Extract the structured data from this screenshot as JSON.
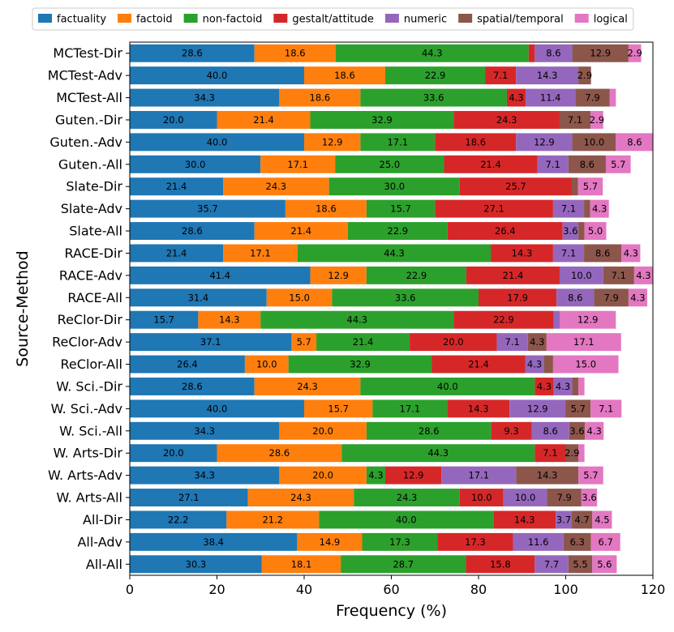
{
  "chart_data": {
    "type": "bar",
    "orientation": "horizontal",
    "stacked": true,
    "xlabel": "Frequency (%)",
    "ylabel": "Source-Method",
    "xlim": [
      0,
      120
    ],
    "xticks": [
      "0",
      "20",
      "40",
      "60",
      "80",
      "100",
      "120"
    ],
    "legend_position": "top",
    "categories": [
      "MCTest-Dir",
      "MCTest-Adv",
      "MCTest-All",
      "Guten.-Dir",
      "Guten.-Adv",
      "Guten.-All",
      "Slate-Dir",
      "Slate-Adv",
      "Slate-All",
      "RACE-Dir",
      "RACE-Adv",
      "RACE-All",
      "ReClor-Dir",
      "ReClor-Adv",
      "ReClor-All",
      "W. Sci.-Dir",
      "W. Sci.-Adv",
      "W. Sci.-All",
      "W. Arts-Dir",
      "W. Arts-Adv",
      "W. Arts-All",
      "All-Dir",
      "All-Adv",
      "All-All"
    ],
    "series": [
      {
        "name": "factuality",
        "color": "#1f77b4",
        "values": [
          28.6,
          40.0,
          34.3,
          20.0,
          40.0,
          30.0,
          21.4,
          35.7,
          28.6,
          21.4,
          41.4,
          31.4,
          15.7,
          37.1,
          26.4,
          28.6,
          40.0,
          34.3,
          20.0,
          34.3,
          27.1,
          22.2,
          38.4,
          30.3
        ]
      },
      {
        "name": "factoid",
        "color": "#ff7f0e",
        "values": [
          18.6,
          18.6,
          18.6,
          21.4,
          12.9,
          17.1,
          24.3,
          18.6,
          21.4,
          17.1,
          12.9,
          15.0,
          14.3,
          5.7,
          10.0,
          24.3,
          15.7,
          20.0,
          28.6,
          20.0,
          24.3,
          21.2,
          14.9,
          18.1
        ]
      },
      {
        "name": "non-factoid",
        "color": "#2ca02c",
        "values": [
          44.3,
          22.9,
          33.6,
          32.9,
          17.1,
          25.0,
          30.0,
          15.7,
          22.9,
          44.3,
          22.9,
          33.6,
          44.3,
          21.4,
          32.9,
          40.0,
          17.1,
          28.6,
          44.3,
          4.3,
          24.3,
          40.0,
          17.3,
          28.7
        ]
      },
      {
        "name": "gestalt/attitude",
        "color": "#d62728",
        "values": [
          1.4,
          7.1,
          4.3,
          24.3,
          18.6,
          21.4,
          25.7,
          27.1,
          26.4,
          14.3,
          21.4,
          17.9,
          22.9,
          20.0,
          21.4,
          4.3,
          14.3,
          9.3,
          7.1,
          12.9,
          10.0,
          14.3,
          17.3,
          15.8
        ]
      },
      {
        "name": "numeric",
        "color": "#9467bd",
        "values": [
          8.6,
          14.3,
          11.4,
          0.0,
          12.9,
          7.1,
          0.0,
          7.1,
          3.6,
          7.1,
          10.0,
          8.6,
          1.4,
          7.1,
          4.3,
          4.3,
          12.9,
          8.6,
          0.0,
          17.1,
          10.0,
          3.7,
          11.6,
          7.7
        ]
      },
      {
        "name": "spatial/temporal",
        "color": "#8c564b",
        "values": [
          12.9,
          2.9,
          7.9,
          7.1,
          10.0,
          8.6,
          1.4,
          1.4,
          1.4,
          8.6,
          7.1,
          7.9,
          0.0,
          4.3,
          2.1,
          1.4,
          5.7,
          3.6,
          2.9,
          14.3,
          7.9,
          4.7,
          6.3,
          5.5
        ]
      },
      {
        "name": "logical",
        "color": "#e377c2",
        "values": [
          2.9,
          0.0,
          1.4,
          2.9,
          8.6,
          5.7,
          5.7,
          4.3,
          5.0,
          4.3,
          4.3,
          4.3,
          12.9,
          17.1,
          15.0,
          1.4,
          7.1,
          4.3,
          1.4,
          5.7,
          3.6,
          4.5,
          6.7,
          5.6
        ]
      }
    ]
  }
}
